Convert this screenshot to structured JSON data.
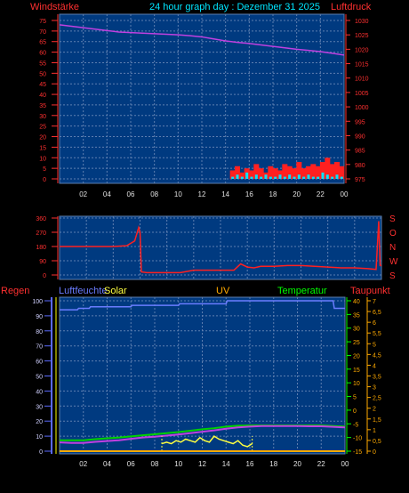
{
  "header": {
    "left": "Windstärke",
    "center": "24 hour graph day : Dezember 31 2025",
    "right": "Luftdruck"
  },
  "colors": {
    "panel": "#003a80",
    "grid": "#5d7fb0",
    "wind": "#ff2020",
    "gust": "#00e5ff",
    "pressure": "#c040e0",
    "humidity": "#6a7cff",
    "temperature": "#00d000",
    "dewpoint": "#c040e0",
    "solar": "#ffff40",
    "uv": "#ffaa00",
    "rain_axis": "#5a6aff",
    "solar_axis": "#ffff00",
    "temp_axis": "#00ff00",
    "tick_red": "#ff3030",
    "tick_orange": "#ffaa00"
  },
  "x_labels": [
    "02",
    "04",
    "06",
    "08",
    "10",
    "12",
    "14",
    "16",
    "18",
    "20",
    "22",
    "00"
  ],
  "chart_data": [
    {
      "type": "line",
      "title": "24 hour graph day : Dezember 31 2025",
      "x_range": [
        0,
        24
      ],
      "left_axis": {
        "label": "Windstärke",
        "ticks": [
          "75",
          "70",
          "65",
          "60",
          "55",
          "50",
          "45",
          "40",
          "35",
          "30",
          "25",
          "20",
          "15",
          "10",
          "5",
          "0"
        ],
        "ylim": [
          0,
          75
        ]
      },
      "right_axis": {
        "label": "Luftdruck",
        "ticks": [
          "1030",
          "1025",
          "1020",
          "1015",
          "1010",
          "1005",
          "1000",
          "995",
          "990",
          "985",
          "980",
          "975"
        ],
        "ylim": [
          975,
          1030
        ]
      },
      "series": [
        {
          "name": "Luftdruck",
          "axis": "right",
          "x": [
            0,
            1,
            2,
            3,
            4,
            5,
            6,
            7,
            8,
            9,
            10,
            11,
            12,
            13,
            14,
            15,
            16,
            17,
            18,
            19,
            20,
            21,
            22,
            23,
            24
          ],
          "y": [
            1028.5,
            1028,
            1027.5,
            1027,
            1026.5,
            1026,
            1025.8,
            1025.6,
            1025.4,
            1025.2,
            1025,
            1024.7,
            1024.3,
            1023.6,
            1022.9,
            1022.4,
            1022,
            1021.5,
            1021,
            1020.5,
            1020,
            1019.6,
            1019.2,
            1018.6,
            1018
          ]
        },
        {
          "name": "Windstärke",
          "axis": "left",
          "x": [
            14.6,
            15,
            15.4,
            15.8,
            16.2,
            16.6,
            17,
            17.4,
            17.8,
            18.2,
            18.6,
            19,
            19.4,
            19.8,
            20.2,
            20.6,
            21,
            21.4,
            21.8,
            22.2,
            22.6,
            23,
            23.4,
            23.8
          ],
          "y": [
            4,
            6,
            3,
            5,
            4,
            7,
            5,
            3,
            6,
            5,
            4,
            7,
            6,
            5,
            8,
            5,
            6,
            7,
            6,
            8,
            10,
            7,
            8,
            6
          ]
        },
        {
          "name": "Böen",
          "axis": "left",
          "x": [
            14.6,
            15,
            15.4,
            15.8,
            16.2,
            16.6,
            17,
            17.4,
            17.8,
            18.2,
            18.6,
            19,
            19.4,
            19.8,
            20.2,
            20.6,
            21,
            21.4,
            21.8,
            22.2,
            22.6,
            23,
            23.4,
            23.8
          ],
          "y": [
            1,
            2,
            1,
            3,
            1,
            2,
            1,
            2,
            1,
            1,
            2,
            1,
            2,
            1,
            2,
            1,
            2,
            1,
            1,
            3,
            2,
            1,
            2,
            1
          ]
        }
      ]
    },
    {
      "type": "line",
      "title": "",
      "x_range": [
        0,
        24
      ],
      "left_axis": {
        "ticks": [
          "360",
          "270",
          "180",
          "90",
          "0"
        ],
        "ylim": [
          0,
          360
        ]
      },
      "right_axis": {
        "ticks": [
          "S",
          "O",
          "N",
          "W",
          "S"
        ]
      },
      "series": [
        {
          "name": "Windrichtung",
          "x": [
            0,
            1,
            2,
            3,
            4,
            5,
            5.6,
            5.9,
            6,
            6.1,
            6.5,
            7,
            8,
            9,
            10,
            11,
            12,
            13,
            13.5,
            14,
            14.5,
            15,
            16,
            17,
            18,
            19,
            20,
            21,
            22,
            23,
            23.6,
            23.8,
            23.9,
            24
          ],
          "y": [
            180,
            180,
            180,
            180,
            180,
            185,
            215,
            300,
            270,
            20,
            15,
            15,
            15,
            15,
            30,
            30,
            30,
            30,
            70,
            50,
            45,
            55,
            55,
            60,
            60,
            55,
            50,
            45,
            45,
            40,
            35,
            340,
            60,
            60
          ]
        }
      ]
    },
    {
      "type": "line",
      "title": "",
      "x_range": [
        0,
        24
      ],
      "labels": {
        "rain": "Regen",
        "humidity": "Luftfeuchte",
        "solar": "Solar",
        "uv": "UV",
        "temperature": "Temperatur",
        "dewpoint": "Taupunkt"
      },
      "humidity_axis": {
        "ticks": [
          "100",
          "90",
          "80",
          "70",
          "60",
          "50",
          "40",
          "30",
          "20",
          "10",
          "0"
        ],
        "ylim": [
          0,
          100
        ]
      },
      "temperature_axis": {
        "ticks": [
          "40",
          "35",
          "30",
          "25",
          "20",
          "15",
          "10",
          "5",
          "0",
          "-5",
          "-10",
          "-15"
        ],
        "ylim": [
          -15,
          40
        ]
      },
      "uv_axis": {
        "ticks": [
          "7",
          "6,5",
          "6",
          "5,5",
          "5",
          "4,5",
          "4",
          "3,5",
          "3",
          "2,5",
          "2",
          "1,5",
          "1",
          "0,5",
          "0"
        ],
        "ylim": [
          0,
          7
        ]
      },
      "series": [
        {
          "name": "Luftfeuchte",
          "axis": "humidity",
          "x": [
            0,
            1.5,
            1.6,
            2,
            2.5,
            2.6,
            3,
            6,
            6.1,
            10,
            10.1,
            14,
            14.1,
            19,
            19.1,
            23,
            23.1,
            24
          ],
          "y": [
            94,
            94,
            95,
            95,
            95,
            96,
            96,
            96,
            97,
            97,
            98,
            98,
            100,
            100,
            100,
            100,
            95,
            95
          ]
        },
        {
          "name": "Temperatur",
          "axis": "temperature",
          "x": [
            0,
            1,
            2,
            3,
            4,
            5,
            6,
            7,
            8,
            9,
            10,
            11,
            12,
            13,
            14,
            15,
            16,
            17,
            18,
            19,
            20,
            21,
            22,
            23,
            24
          ],
          "y": [
            -11,
            -11,
            -11,
            -10.6,
            -10.3,
            -10,
            -9.6,
            -9.2,
            -8.8,
            -8.4,
            -8,
            -7.5,
            -7,
            -6.6,
            -6,
            -5.7,
            -5.6,
            -5.6,
            -5.6,
            -5.6,
            -5.6,
            -5.6,
            -5.6,
            -5.8,
            -6
          ]
        },
        {
          "name": "Taupunkt",
          "axis": "temperature",
          "x": [
            0,
            1,
            2,
            3,
            4,
            5,
            6,
            7,
            8,
            9,
            10,
            11,
            12,
            13,
            14,
            15,
            16,
            17,
            18,
            19,
            20,
            21,
            22,
            23,
            24
          ],
          "y": [
            -11.8,
            -12,
            -12,
            -11.6,
            -11.3,
            -11,
            -10.5,
            -10,
            -9.7,
            -9.3,
            -8.9,
            -8.4,
            -7.9,
            -7.4,
            -6.8,
            -6.3,
            -6,
            -5.8,
            -5.8,
            -5.8,
            -5.8,
            -5.9,
            -5.9,
            -6.1,
            -6.3
          ]
        },
        {
          "name": "Solar",
          "axis": "humidity",
          "x": [
            8.6,
            9,
            9.4,
            9.8,
            10.2,
            10.6,
            11,
            11.4,
            11.8,
            12.2,
            12.6,
            13,
            13.4,
            13.8,
            14.2,
            14.6,
            15,
            15.4,
            15.8,
            16.2
          ],
          "y": [
            5,
            6,
            5,
            7,
            6,
            8,
            7,
            6,
            9,
            7,
            6,
            10,
            8,
            7,
            6,
            5,
            7,
            4,
            3,
            5
          ]
        },
        {
          "name": "UV",
          "axis": "uv",
          "x": [
            0,
            24
          ],
          "y": [
            0,
            0
          ]
        }
      ]
    }
  ]
}
